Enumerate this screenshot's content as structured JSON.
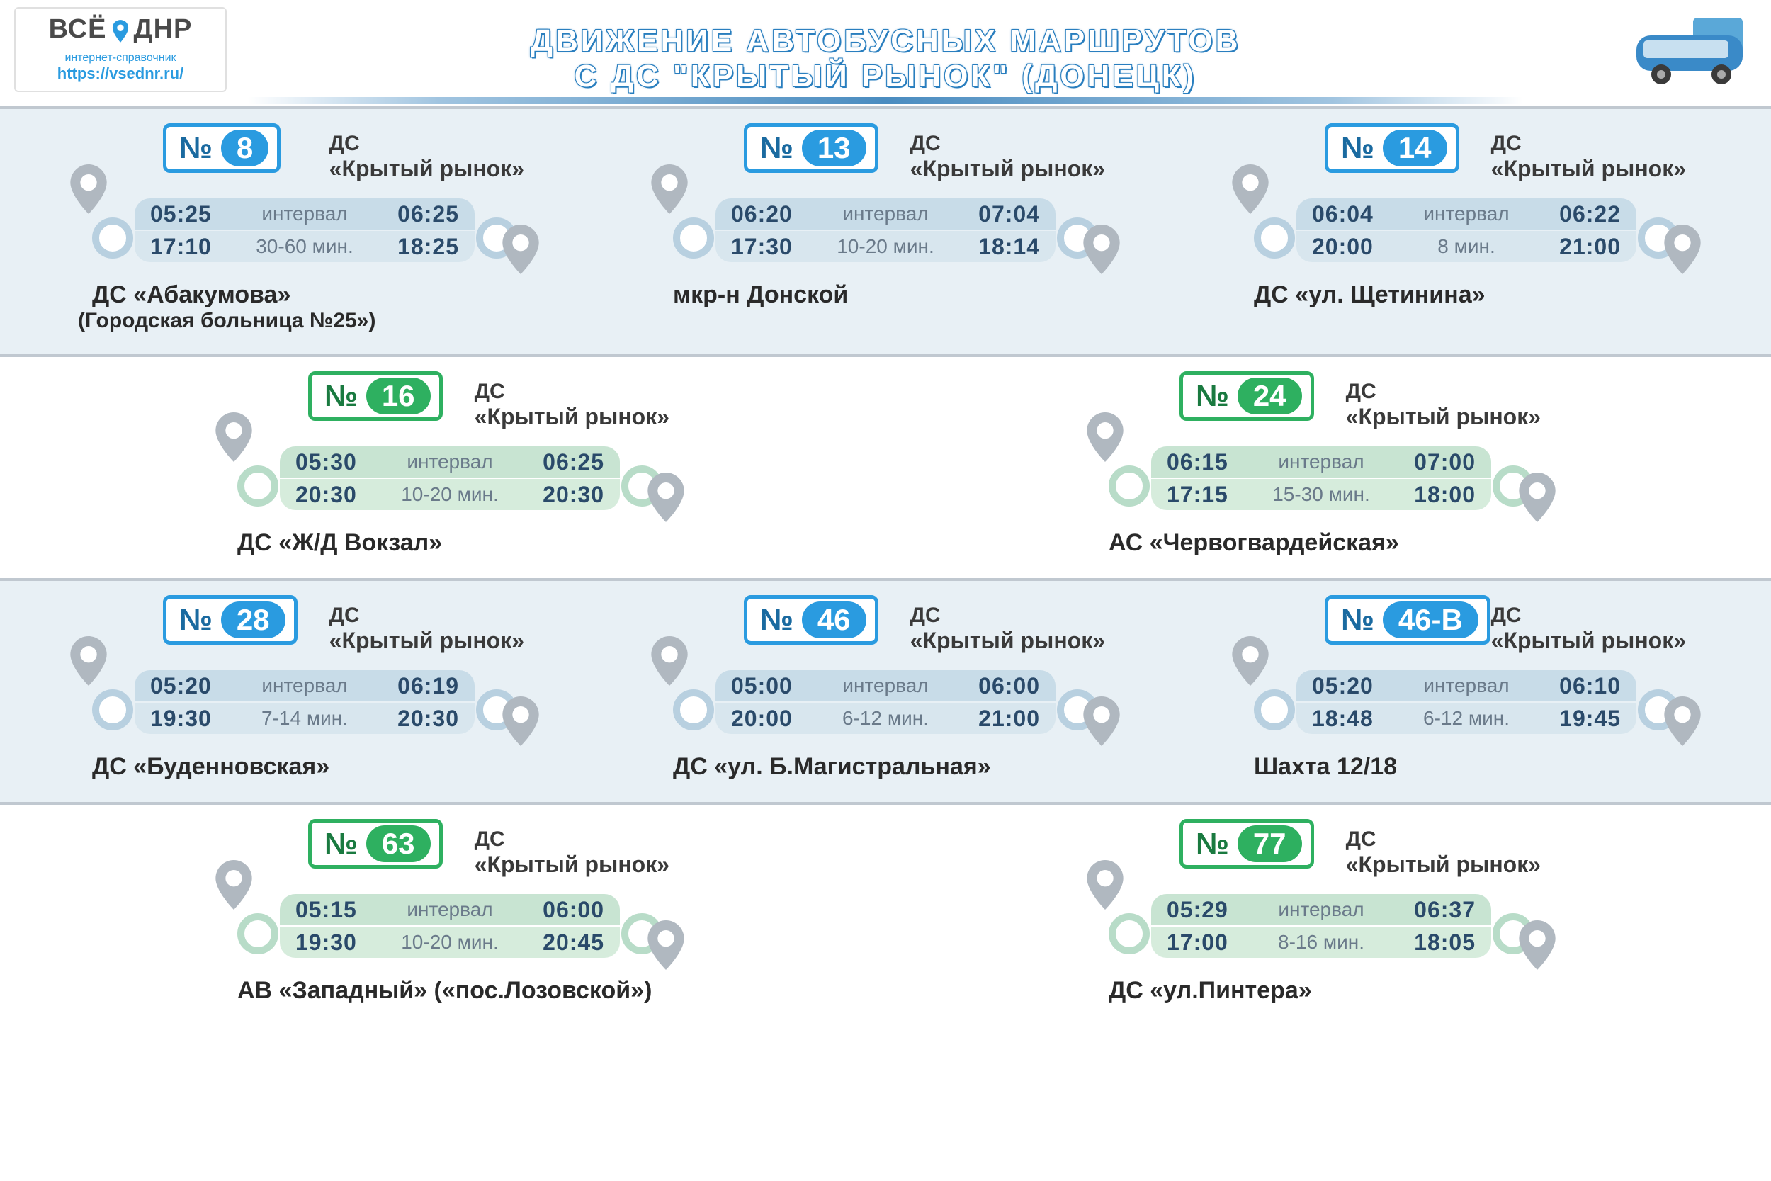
{
  "header": {
    "logo_main_l": "ВСЁ",
    "logo_main_r": "ДНР",
    "logo_sub": "интернет-справочник",
    "logo_url": "https://vsednr.ru/",
    "title_l1": "ДВИЖЕНИЕ АВТОБУСНЫХ МАРШРУТОВ",
    "title_l2": "С ДС \"КРЫТЫЙ РЫНОК\" (ДОНЕЦК)"
  },
  "colors": {
    "blue_border": "#2a9be0",
    "blue_fill": "#2a9be0",
    "blue_text": "#1a6aa0",
    "blue_bar": "#c8dce8",
    "blue_bar2": "#d8e6ee",
    "blue_ring": "#b8d0e0",
    "green_border": "#2eb060",
    "green_fill": "#2eb060",
    "green_text": "#1a7a40",
    "green_bar": "#c8e4d2",
    "green_bar2": "#d6ecdc",
    "green_ring": "#b8dcc8",
    "pin_gray": "#b0b8c0"
  },
  "common": {
    "no_prefix": "№",
    "origin_ds": "ДС",
    "origin_name": "«Крытый рынок»",
    "interval_label": "интервал"
  },
  "routes": [
    {
      "num": "8",
      "color": "blue",
      "t1": "05:25",
      "t2": "06:25",
      "t3": "17:10",
      "t4": "18:25",
      "intv": "30-60 мин.",
      "dest": "ДС «Абакумова»",
      "dest2": "(Городская больница №25»)"
    },
    {
      "num": "13",
      "color": "blue",
      "t1": "06:20",
      "t2": "07:04",
      "t3": "17:30",
      "t4": "18:14",
      "intv": "10-20 мин.",
      "dest": "мкр-н Донской",
      "dest2": ""
    },
    {
      "num": "14",
      "color": "blue",
      "t1": "06:04",
      "t2": "06:22",
      "t3": "20:00",
      "t4": "21:00",
      "intv": "8 мин.",
      "dest": "ДС «ул. Щетинина»",
      "dest2": ""
    },
    {
      "num": "16",
      "color": "green",
      "t1": "05:30",
      "t2": "06:25",
      "t3": "20:30",
      "t4": "20:30",
      "intv": "10-20 мин.",
      "dest": "ДС «Ж/Д Вокзал»",
      "dest2": ""
    },
    {
      "num": "24",
      "color": "green",
      "t1": "06:15",
      "t2": "07:00",
      "t3": "17:15",
      "t4": "18:00",
      "intv": "15-30 мин.",
      "dest": "АС «Червогвардейская»",
      "dest2": ""
    },
    {
      "num": "28",
      "color": "blue",
      "t1": "05:20",
      "t2": "06:19",
      "t3": "19:30",
      "t4": "20:30",
      "intv": "7-14 мин.",
      "dest": "ДС «Буденновская»",
      "dest2": ""
    },
    {
      "num": "46",
      "color": "blue",
      "t1": "05:00",
      "t2": "06:00",
      "t3": "20:00",
      "t4": "21:00",
      "intv": "6-12 мин.",
      "dest": "ДС «ул. Б.Магистральная»",
      "dest2": ""
    },
    {
      "num": "46-В",
      "color": "blue",
      "t1": "05:20",
      "t2": "06:10",
      "t3": "18:48",
      "t4": "19:45",
      "intv": "6-12 мин.",
      "dest": "Шахта 12/18",
      "dest2": ""
    },
    {
      "num": "63",
      "color": "green",
      "t1": "05:15",
      "t2": "06:00",
      "t3": "19:30",
      "t4": "20:45",
      "intv": "10-20 мин.",
      "dest": "АВ «Западный» («пос.Лозовской»)",
      "dest2": ""
    },
    {
      "num": "77",
      "color": "green",
      "t1": "05:29",
      "t2": "06:37",
      "t3": "17:00",
      "t4": "18:05",
      "intv": "8-16 мин.",
      "dest": "ДС «ул.Пинтера»",
      "dest2": ""
    }
  ],
  "layout": {
    "rows": [
      {
        "band": "blue",
        "idx": [
          0,
          1,
          2
        ]
      },
      {
        "band": "white",
        "idx": [
          3,
          4
        ]
      },
      {
        "band": "blue",
        "idx": [
          5,
          6,
          7
        ]
      },
      {
        "band": "white",
        "idx": [
          8,
          9
        ]
      }
    ]
  }
}
